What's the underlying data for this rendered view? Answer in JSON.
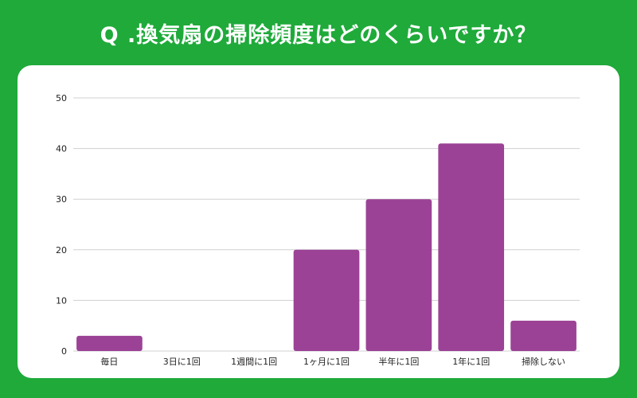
{
  "title": "Q .換気扇の掃除頻度はどのくらいですか？",
  "colors": {
    "background": "#1faa3a",
    "card": "#ffffff",
    "bar": "#9b4296",
    "grid": "#d0d0d0",
    "text": "#222222"
  },
  "chart_data": {
    "type": "bar",
    "categories": [
      "毎日",
      "3日に1回",
      "1週間に1回",
      "1ヶ月に1回",
      "半年に1回",
      "1年に1回",
      "掃除しない"
    ],
    "values": [
      3,
      0,
      0,
      20,
      30,
      41,
      6
    ],
    "yticks": [
      0,
      10,
      20,
      30,
      40,
      50
    ],
    "ylim": [
      0,
      50
    ],
    "grid": true,
    "title": "",
    "xlabel": "",
    "ylabel": ""
  }
}
